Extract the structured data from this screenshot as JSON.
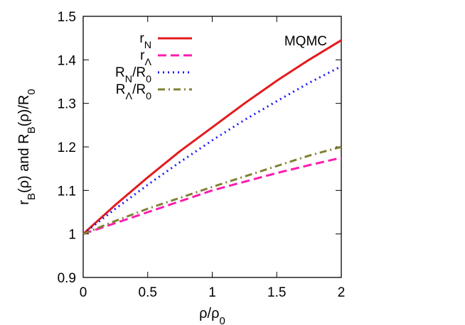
{
  "chart_data": {
    "type": "line",
    "annotation": "MQMC",
    "xlabel": {
      "base": "ρ/ρ",
      "sub": "0"
    },
    "ylabel": [
      {
        "text": "r",
        "sub": false
      },
      {
        "text": "B",
        "sub": true
      },
      {
        "text": "(ρ)  and  R",
        "sub": false
      },
      {
        "text": "B",
        "sub": true
      },
      {
        "text": "(ρ)/R",
        "sub": false
      },
      {
        "text": "0",
        "sub": true
      }
    ],
    "xlim": [
      0,
      2
    ],
    "ylim": [
      0.9,
      1.5
    ],
    "xticks": [
      0,
      0.5,
      1,
      1.5,
      2
    ],
    "xtick_labels": [
      "0",
      "0.5",
      "1",
      "1.5",
      "2"
    ],
    "yticks": [
      0.9,
      1.0,
      1.1,
      1.2,
      1.3,
      1.4,
      1.5
    ],
    "ytick_labels": [
      "0.9",
      "1",
      "1.1",
      "1.2",
      "1.3",
      "1.4",
      "1.5"
    ],
    "grid": false,
    "legend_position": "top-left",
    "x": [
      0,
      0.25,
      0.5,
      0.75,
      1.0,
      1.25,
      1.5,
      1.75,
      2.0
    ],
    "series": [
      {
        "legend": [
          {
            "text": "r",
            "sub": false
          },
          {
            "text": "N",
            "sub": true
          }
        ],
        "color": "#e41a1c",
        "dash": "solid",
        "values": [
          1.0,
          1.067,
          1.13,
          1.19,
          1.245,
          1.3,
          1.352,
          1.4,
          1.445
        ]
      },
      {
        "legend": [
          {
            "text": "r",
            "sub": false
          },
          {
            "text": "Λ",
            "sub": true
          }
        ],
        "color": "#ff1aaf",
        "dash": "dashed",
        "values": [
          1.0,
          1.025,
          1.05,
          1.075,
          1.1,
          1.12,
          1.14,
          1.158,
          1.175
        ]
      },
      {
        "legend": [
          {
            "text": "R",
            "sub": false
          },
          {
            "text": "N",
            "sub": true
          },
          {
            "text": "/R",
            "sub": false
          },
          {
            "text": "0",
            "sub": true
          }
        ],
        "color": "#1a1aff",
        "dash": "dotted",
        "values": [
          1.0,
          1.058,
          1.113,
          1.165,
          1.215,
          1.262,
          1.305,
          1.347,
          1.385
        ]
      },
      {
        "legend": [
          {
            "text": "R",
            "sub": false
          },
          {
            "text": "Λ",
            "sub": true
          },
          {
            "text": "/R",
            "sub": false
          },
          {
            "text": "0",
            "sub": true
          }
        ],
        "color": "#808034",
        "dash": "dashdot",
        "values": [
          1.0,
          1.03,
          1.058,
          1.083,
          1.108,
          1.132,
          1.156,
          1.18,
          1.2
        ]
      }
    ]
  }
}
